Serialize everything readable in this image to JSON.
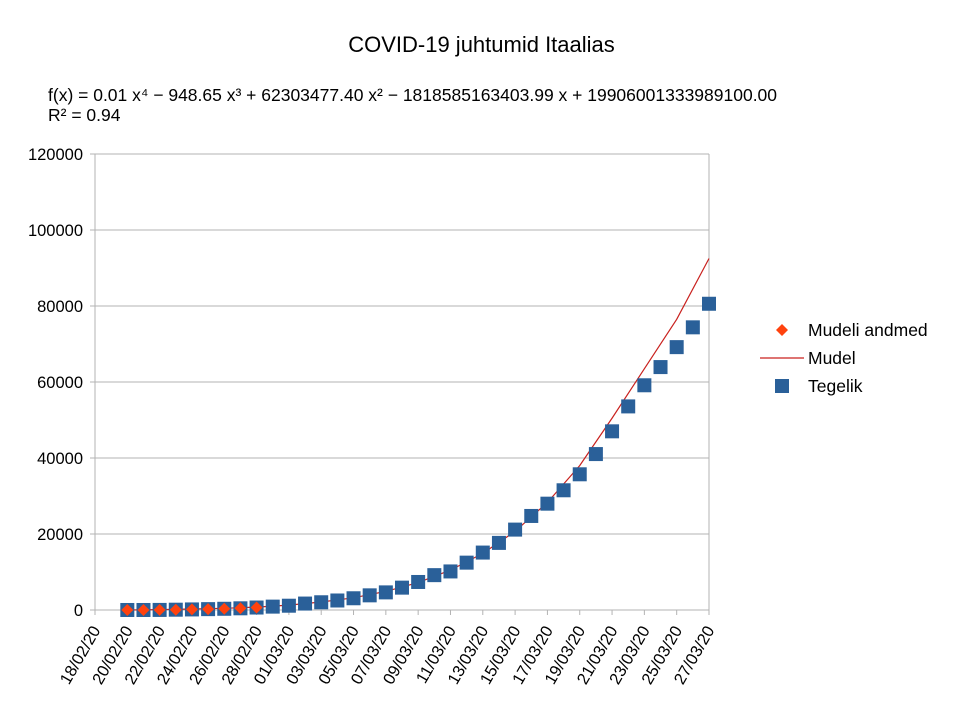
{
  "chart_data": {
    "type": "scatter",
    "title": "COVID-19 juhtumid Itaalias",
    "equation": "f(x) = 0.01 x⁴ − 948.65 x³ + 62303477.40 x² − 1818585163403.99 x + 19906001333989100.00",
    "r_squared": "R² = 0.94",
    "ylim": [
      0,
      120000
    ],
    "y_ticks": [
      "0",
      "20000",
      "40000",
      "60000",
      "80000",
      "100000",
      "120000"
    ],
    "x_tick_labels": [
      "18/02/20",
      "20/02/20",
      "22/02/20",
      "24/02/20",
      "26/02/20",
      "28/02/20",
      "01/03/20",
      "03/03/20",
      "05/03/20",
      "07/03/20",
      "09/03/20",
      "11/03/20",
      "13/03/20",
      "15/03/20",
      "17/03/20",
      "19/03/20",
      "21/03/20",
      "23/03/20",
      "25/03/20",
      "27/03/20"
    ],
    "x_dates": [
      "2020-02-18",
      "2020-03-27"
    ],
    "grid": "horizontal",
    "legend_position": "right",
    "series": [
      {
        "name": "Mudeli andmed",
        "marker": "diamond",
        "color": "#ff420e",
        "x": [
          "2020-02-20",
          "2020-02-21",
          "2020-02-22",
          "2020-02-23",
          "2020-02-24",
          "2020-02-25",
          "2020-02-26",
          "2020-02-27",
          "2020-02-28"
        ],
        "y": [
          3,
          3,
          20,
          79,
          150,
          227,
          320,
          445,
          650
        ]
      },
      {
        "name": "Mudel",
        "marker": "line",
        "color": "#c9211e",
        "x": [
          "2020-02-20",
          "2020-02-22",
          "2020-02-24",
          "2020-02-26",
          "2020-02-28",
          "2020-03-01",
          "2020-03-03",
          "2020-03-05",
          "2020-03-07",
          "2020-03-09",
          "2020-03-11",
          "2020-03-13",
          "2020-03-15",
          "2020-03-17",
          "2020-03-19",
          "2020-03-21",
          "2020-03-23",
          "2020-03-25",
          "2020-03-27"
        ],
        "y": [
          0,
          100,
          250,
          450,
          750,
          1300,
          2100,
          3200,
          4900,
          7200,
          10500,
          14900,
          20700,
          28300,
          38000,
          50500,
          63500,
          76500,
          92500
        ]
      },
      {
        "name": "Tegelik",
        "marker": "square",
        "color": "#2a6099",
        "x": [
          "2020-02-20",
          "2020-02-21",
          "2020-02-22",
          "2020-02-23",
          "2020-02-24",
          "2020-02-25",
          "2020-02-26",
          "2020-02-27",
          "2020-02-28",
          "2020-02-29",
          "2020-03-01",
          "2020-03-02",
          "2020-03-03",
          "2020-03-04",
          "2020-03-05",
          "2020-03-06",
          "2020-03-07",
          "2020-03-08",
          "2020-03-09",
          "2020-03-10",
          "2020-03-11",
          "2020-03-12",
          "2020-03-13",
          "2020-03-14",
          "2020-03-15",
          "2020-03-16",
          "2020-03-17",
          "2020-03-18",
          "2020-03-19",
          "2020-03-20",
          "2020-03-21",
          "2020-03-22",
          "2020-03-23",
          "2020-03-24",
          "2020-03-25",
          "2020-03-26",
          "2020-03-27"
        ],
        "y": [
          3,
          3,
          20,
          79,
          150,
          227,
          320,
          445,
          650,
          888,
          1128,
          1694,
          2036,
          2502,
          3089,
          3858,
          4636,
          5883,
          7375,
          9172,
          10149,
          12462,
          15113,
          17660,
          21157,
          24747,
          27980,
          31506,
          35713,
          41035,
          47021,
          53578,
          59138,
          63927,
          69176,
          74386,
          80589
        ]
      }
    ]
  }
}
